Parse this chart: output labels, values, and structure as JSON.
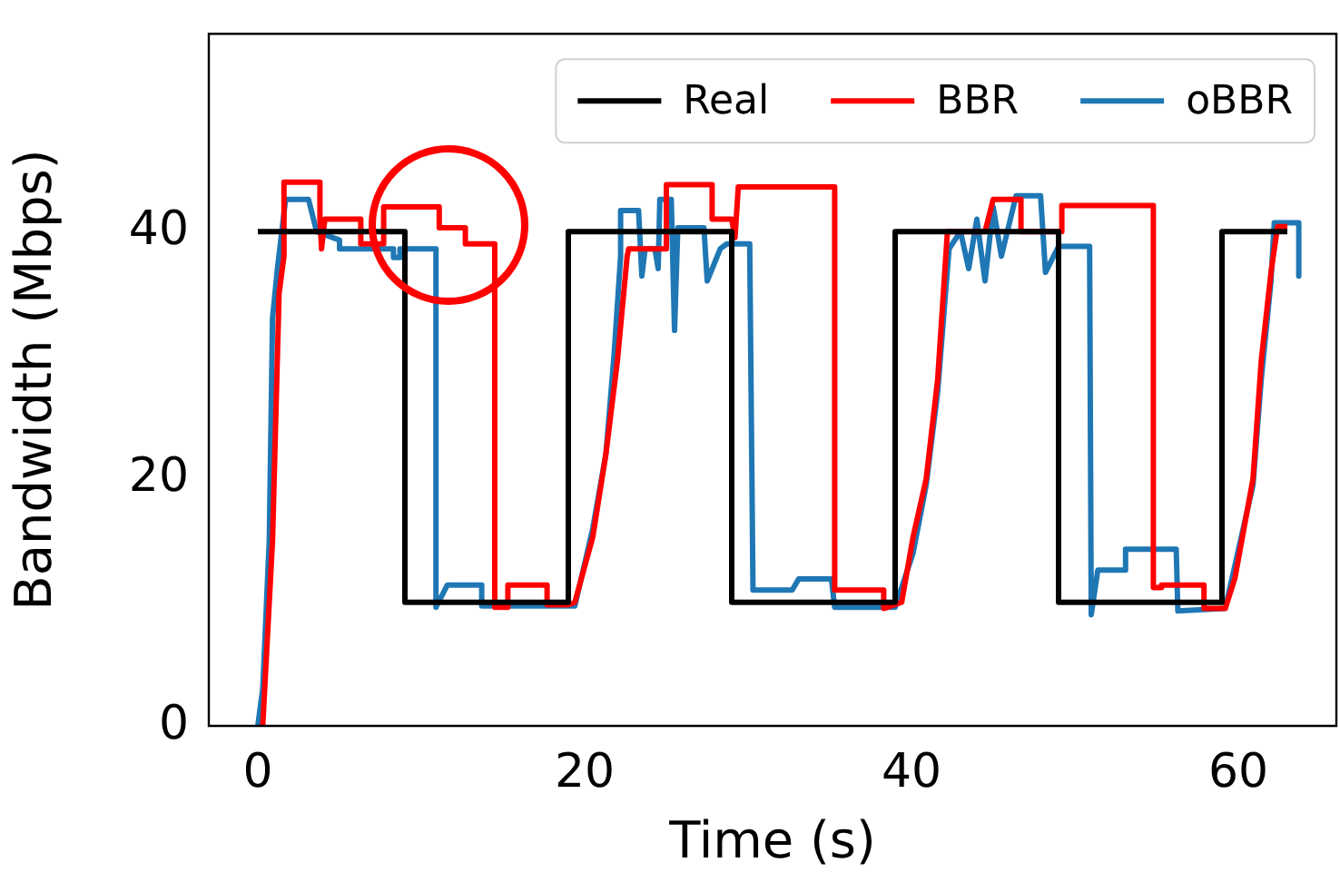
{
  "chart_data": {
    "type": "line",
    "xlabel": "Time (s)",
    "ylabel": "Bandwidth (Mbps)",
    "xlim": [
      -3,
      66
    ],
    "ylim": [
      0,
      56
    ],
    "xticks": [
      0,
      20,
      40,
      60
    ],
    "yticks": [
      0,
      20,
      40
    ],
    "grid": false,
    "legend": "top",
    "marker": "none",
    "line_style": "solid",
    "series": [
      {
        "name": "Real",
        "color": "#000000",
        "x": [
          0,
          9,
          9,
          19,
          19,
          29,
          29,
          39,
          39,
          49,
          49,
          59,
          59,
          63
        ],
        "values": [
          40,
          40,
          10,
          10,
          40,
          40,
          10,
          10,
          40,
          40,
          10,
          10,
          40,
          40
        ]
      },
      {
        "name": "BBR",
        "color": "#ff0000",
        "x": [
          0.3,
          0.9,
          1.3,
          1.6,
          1.6,
          3.8,
          3.8,
          3.9,
          4.1,
          6.3,
          6.3,
          7.7,
          7.7,
          11.1,
          11.1,
          12.7,
          12.7,
          14.5,
          14.5,
          15.3,
          15.3,
          17.7,
          17.7,
          19,
          19.4,
          20.5,
          21.3,
          22,
          22.6,
          22.7,
          25,
          25,
          27.8,
          27.8,
          29,
          29.2,
          29.4,
          35.3,
          35.3,
          38.3,
          38.3,
          39.4,
          40.1,
          40.9,
          41.6,
          42.2,
          44.5,
          45,
          46.7,
          46.7,
          48.5,
          49.2,
          49.2,
          54.8,
          54.8,
          55.3,
          55.3,
          57.9,
          57.9,
          59.2,
          59.8,
          60.9,
          61.4,
          62,
          62.4,
          63
        ],
        "values": [
          0,
          15,
          35,
          38,
          44,
          44,
          41,
          38.6,
          41,
          41,
          39,
          39,
          42,
          42,
          40.3,
          40.3,
          39,
          39,
          9.6,
          9.6,
          11.4,
          11.4,
          9.8,
          9.8,
          10,
          15.3,
          22,
          29.5,
          38,
          38.6,
          38.6,
          43.8,
          43.8,
          41,
          41,
          39.5,
          43.6,
          43.6,
          11,
          11,
          9.5,
          10,
          15.3,
          20,
          28,
          40,
          40,
          42.6,
          42.6,
          40,
          40,
          40,
          42.1,
          42.1,
          11.2,
          11.2,
          11.4,
          11.4,
          9.5,
          9.5,
          12,
          20,
          29.5,
          36.7,
          40.4,
          40.4
        ]
      },
      {
        "name": "oBBR",
        "color": "#1f77b4",
        "x": [
          0,
          0.3,
          0.7,
          0.9,
          1.2,
          1.7,
          3.1,
          3.6,
          5,
          5,
          8.3,
          8.3,
          8.7,
          8.7,
          10.9,
          10.9,
          11.6,
          11.6,
          13.7,
          13.7,
          19.4,
          20.5,
          21.3,
          21.8,
          22.2,
          22.2,
          23.3,
          23.5,
          23.7,
          24.3,
          24.5,
          24.6,
          25.3,
          25.5,
          25.7,
          27.3,
          27.5,
          28.3,
          28.7,
          30.1,
          30.3,
          32.7,
          33.1,
          35.1,
          35.3,
          39,
          40.1,
          40.9,
          41.6,
          42.3,
          43,
          43.5,
          44,
          44.5,
          45,
          45.5,
          46.4,
          47.9,
          48.2,
          49,
          50.9,
          51,
          51.4,
          53.1,
          53.1,
          56.2,
          56.3,
          59.2,
          60.9,
          61.4,
          62,
          62.2,
          63.7,
          63.7
        ],
        "values": [
          0,
          3,
          15,
          33,
          37,
          42.6,
          42.6,
          40,
          39.3,
          38.6,
          38.6,
          37.9,
          37.9,
          38.6,
          38.6,
          9.6,
          11.4,
          11.4,
          11.4,
          9.7,
          9.7,
          16,
          22,
          30,
          38,
          41.7,
          41.7,
          36.4,
          38.6,
          38.6,
          37,
          42.6,
          42.6,
          32,
          40.3,
          40.3,
          36,
          38.6,
          39,
          39,
          11,
          11,
          11.9,
          11.9,
          9.6,
          9.6,
          14,
          19.5,
          27,
          38.6,
          40,
          37,
          41,
          36,
          42,
          38,
          42.9,
          42.9,
          36.7,
          38.8,
          38.8,
          9,
          12.6,
          12.6,
          14.3,
          14.3,
          9.3,
          9.5,
          19.5,
          28,
          36,
          40.7,
          40.7,
          36.4
        ]
      }
    ]
  }
}
